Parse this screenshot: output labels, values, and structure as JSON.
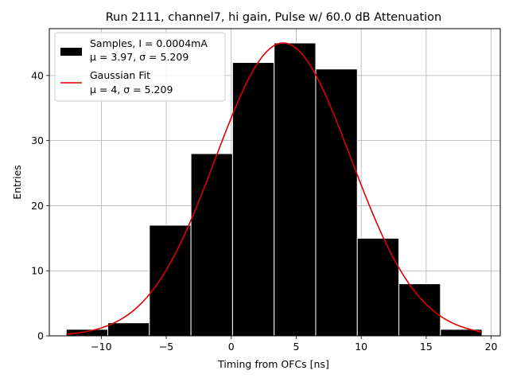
{
  "chart_data": {
    "type": "bar",
    "title": "Run 2111, channel7, hi gain, Pulse w/ 60.0 dB Attenuation",
    "xlabel": "Timing from OFCs [ns]",
    "ylabel": "Entries",
    "xlim": [
      -14.0,
      20.7
    ],
    "ylim": [
      0,
      47.2
    ],
    "grid": true,
    "legend_placement": "top-left",
    "x_ticks": [
      -10,
      -5,
      0,
      5,
      10,
      15,
      20
    ],
    "x_tick_labels": [
      "−10",
      "−5",
      "0",
      "5",
      "10",
      "15",
      "20"
    ],
    "y_ticks": [
      0,
      10,
      20,
      30,
      40
    ],
    "y_tick_labels": [
      "0",
      "10",
      "20",
      "30",
      "40"
    ],
    "histogram": {
      "name_line1": "Samples, I = 0.0004mA",
      "name_line2": "μ = 3.97, σ = 5.209",
      "color": "#000000",
      "edgecolor": "#ffffff",
      "bin_edges": [
        -12.7,
        -9.5,
        -6.3,
        -3.1,
        0.1,
        3.3,
        6.5,
        9.7,
        12.9,
        16.1,
        19.3
      ],
      "counts": [
        1,
        2,
        17,
        28,
        42,
        45,
        41,
        15,
        8,
        1
      ]
    },
    "fit": {
      "name_line1": "Gaussian Fit",
      "name_line2": "μ = 4, σ = 5.209",
      "color": "#e00000",
      "mu": 4,
      "sigma": 5.209,
      "amplitude": 45,
      "x_range": [
        -12.7,
        19.3
      ]
    }
  }
}
